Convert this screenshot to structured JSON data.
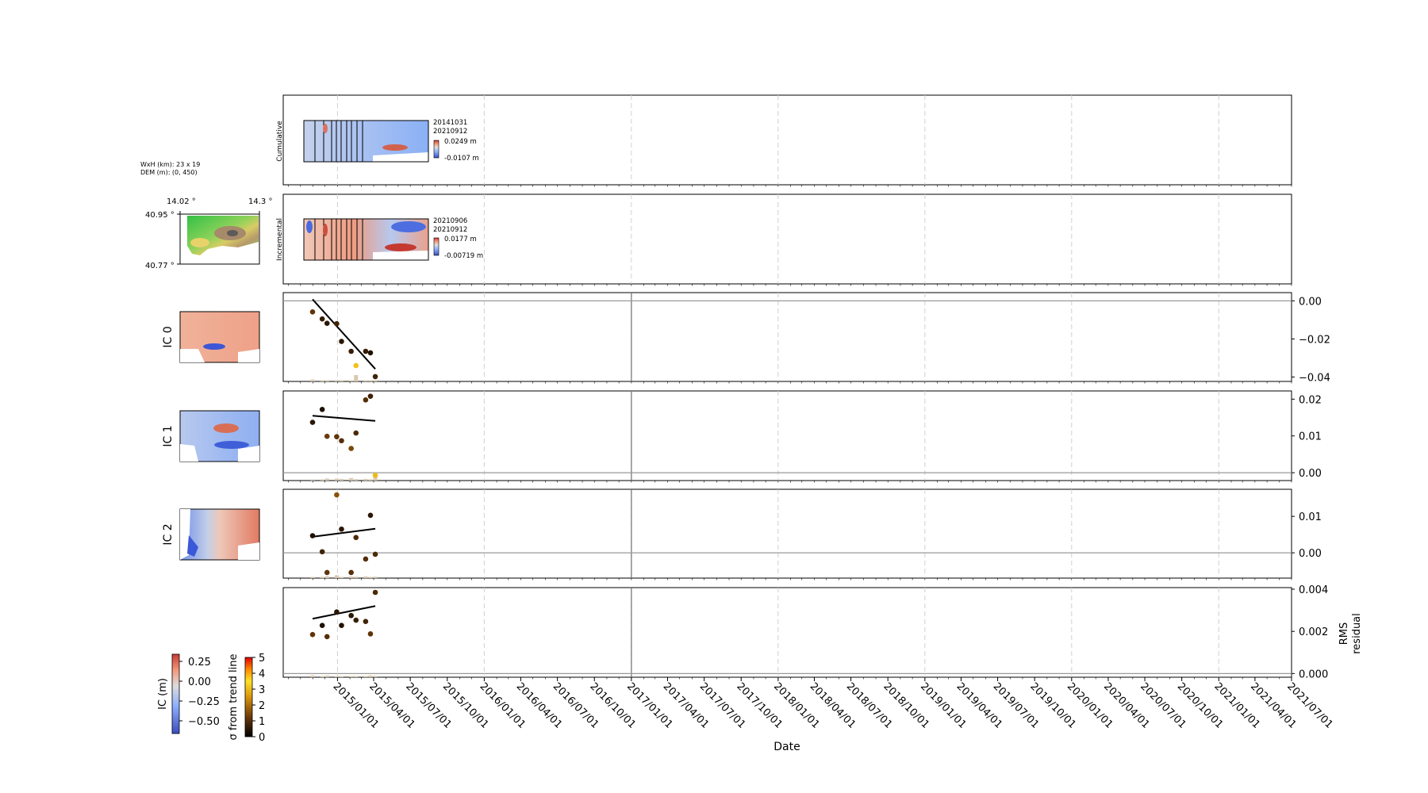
{
  "figure": {
    "dem_info": [
      "WxH (km): 23 x 19",
      "DEM (m): (0, 450)"
    ],
    "dem_lon_labels": [
      "14.02 °",
      "14.3 °"
    ],
    "dem_lat_labels": [
      "40.95 °",
      "40.77 °"
    ],
    "xlabel": "Date",
    "date_ticks": [
      "2015/01/01",
      "2015/04/01",
      "2015/07/01",
      "2015/10/01",
      "2016/01/01",
      "2016/04/01",
      "2016/07/01",
      "2016/10/01",
      "2017/01/01",
      "2017/04/01",
      "2017/07/01",
      "2017/10/01",
      "2018/01/01",
      "2018/04/01",
      "2018/07/01",
      "2018/10/01",
      "2019/01/01",
      "2019/04/01",
      "2019/07/01",
      "2019/10/01",
      "2020/01/01",
      "2020/04/01",
      "2020/07/01",
      "2020/10/01",
      "2021/01/01",
      "2021/04/01",
      "2021/07/01"
    ],
    "colors": {
      "dots": "#2e1a06",
      "outlier": "#c8860c",
      "bars": "#d8c9b0",
      "trend": "#000000",
      "zero_line": "#9a9a9a",
      "grid": "#d0d0d0"
    }
  },
  "cumulative": {
    "ylabel": "Cumulative",
    "dates": [
      "20141031",
      "20210912"
    ],
    "cbar_max": "0.0249 m",
    "cbar_min": "-0.0107 m"
  },
  "incremental": {
    "ylabel": "Incremental",
    "dates": [
      "20210906",
      "20210912"
    ],
    "cbar_max": "0.0177 m",
    "cbar_min": "-0.00719 m"
  },
  "ic_labels": [
    "IC 0",
    "IC 1",
    "IC 2"
  ],
  "rms_label": [
    "RMS",
    "residual"
  ],
  "colorbar_ic": {
    "label": "IC (m)",
    "ticks": [
      "0.25",
      "0.00",
      "−0.25",
      "−0.50"
    ]
  },
  "colorbar_sigma": {
    "label": "σ from trend line",
    "ticks": [
      "5",
      "4",
      "3",
      "2",
      "1",
      "0"
    ]
  },
  "chart_data": [
    {
      "type": "scatter",
      "panel": "IC 0",
      "dates": [
        "2014-10-31",
        "2014-11-24",
        "2014-12-06",
        "2014-12-30",
        "2015-01-11",
        "2015-02-04",
        "2015-02-16",
        "2015-03-12",
        "2015-03-24",
        "2015-04-05"
      ],
      "values": [
        -0.0058,
        -0.0095,
        -0.0118,
        -0.012,
        -0.0213,
        -0.0265,
        -0.034,
        -0.0265,
        -0.0273,
        -0.0398
      ],
      "sigma": [
        0.9,
        0.5,
        0.4,
        0.6,
        0.4,
        0.5,
        3.1,
        0.5,
        0.3,
        0.6
      ],
      "trend": [
        0.0008,
        -0.0358
      ],
      "ylim": [
        -0.0415,
        0.0035
      ],
      "yticks": [
        0.0,
        -0.02,
        -0.04
      ],
      "ytick_labels": [
        "0.00",
        "−0.02",
        "−0.04"
      ]
    },
    {
      "type": "scatter",
      "panel": "IC 1",
      "dates": [
        "2014-10-31",
        "2014-11-24",
        "2014-12-06",
        "2014-12-30",
        "2015-01-11",
        "2015-02-04",
        "2015-02-16",
        "2015-03-12",
        "2015-03-24",
        "2015-04-05"
      ],
      "values": [
        0.0137,
        0.0172,
        0.0099,
        0.0098,
        0.0087,
        0.0066,
        0.0108,
        0.0198,
        0.0208,
        -0.0007
      ],
      "sigma": [
        0.4,
        0.3,
        1.0,
        0.9,
        0.8,
        1.2,
        0.7,
        0.8,
        0.6,
        3.0
      ],
      "trend": [
        0.0155,
        0.0141
      ],
      "ylim": [
        -0.0017,
        0.0218
      ],
      "yticks": [
        0.0,
        0.01,
        0.02
      ],
      "ytick_labels": [
        "0.00",
        "0.01",
        "0.02"
      ]
    },
    {
      "type": "scatter",
      "panel": "IC 2",
      "dates": [
        "2014-10-31",
        "2014-11-24",
        "2014-12-06",
        "2014-12-30",
        "2015-01-11",
        "2015-02-04",
        "2015-02-16",
        "2015-03-12",
        "2015-03-24",
        "2015-04-05"
      ],
      "values": [
        0.0047,
        0.0003,
        -0.0054,
        0.0159,
        0.0065,
        -0.0054,
        0.0042,
        -0.0017,
        0.0103,
        -0.0004
      ],
      "sigma": [
        0.3,
        0.6,
        0.9,
        1.4,
        0.4,
        0.8,
        0.7,
        0.8,
        0.4,
        0.7
      ],
      "trend": [
        0.0044,
        0.0066
      ],
      "ylim": [
        -0.0065,
        0.017
      ],
      "yticks": [
        0.0,
        0.01
      ],
      "ytick_labels": [
        "0.00",
        "0.01"
      ]
    },
    {
      "type": "scatter",
      "panel": "RMS residual",
      "dates": [
        "2014-10-31",
        "2014-11-24",
        "2014-12-06",
        "2014-12-30",
        "2015-01-11",
        "2015-02-04",
        "2015-02-16",
        "2015-03-12",
        "2015-03-24",
        "2015-04-05"
      ],
      "values": [
        0.00185,
        0.00228,
        0.00175,
        0.00292,
        0.00228,
        0.00275,
        0.00253,
        0.00247,
        0.00188,
        0.00385
      ],
      "sigma": [
        0.9,
        0.3,
        0.8,
        0.4,
        0.3,
        0.4,
        0.5,
        0.6,
        0.9,
        0.7
      ],
      "trend": [
        0.0026,
        0.0032
      ],
      "ylim": [
        -0.0001,
        0.004
      ],
      "yticks": [
        0.0,
        0.002,
        0.004
      ],
      "ytick_labels": [
        "0.000",
        "0.002",
        "0.004"
      ]
    }
  ]
}
